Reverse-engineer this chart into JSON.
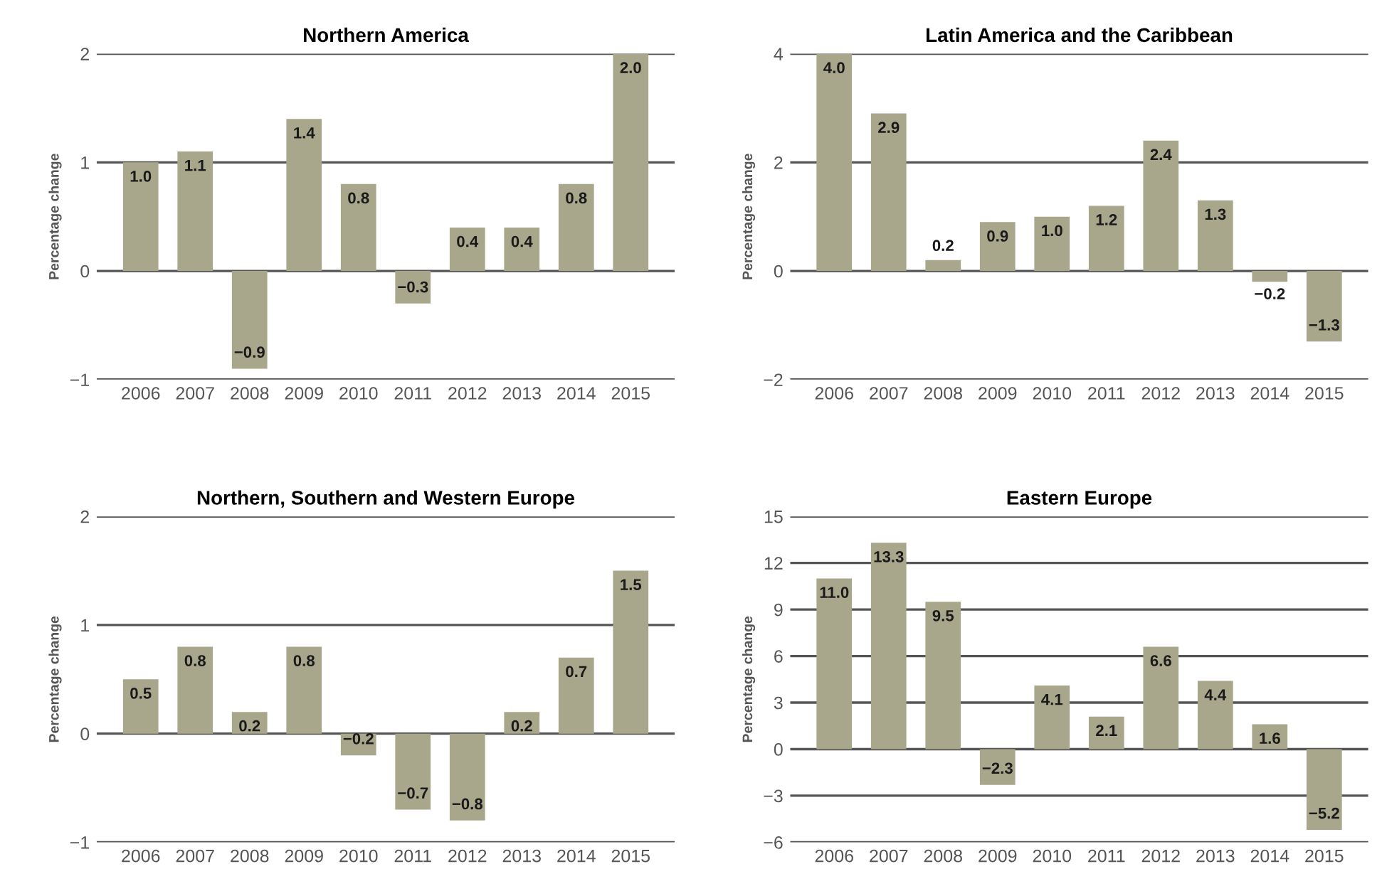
{
  "chart_data": [
    {
      "type": "bar",
      "title": "Northern America",
      "ylabel": "Percentage change",
      "categories": [
        "2006",
        "2007",
        "2008",
        "2009",
        "2010",
        "2011",
        "2012",
        "2013",
        "2014",
        "2015"
      ],
      "values": [
        1.0,
        1.1,
        -0.9,
        1.4,
        0.8,
        -0.3,
        0.4,
        0.4,
        0.8,
        2.0
      ],
      "value_labels": [
        "1.0",
        "1.1",
        "−0.9",
        "1.4",
        "0.8",
        "−0.3",
        "0.4",
        "0.4",
        "0.8",
        "2.0"
      ],
      "color": "#a8a78c",
      "ylim": [
        -1,
        2
      ],
      "yticks": [
        {
          "value": -1,
          "label": "−1"
        },
        0,
        1,
        2
      ],
      "grid": "y"
    },
    {
      "type": "bar",
      "title": "Latin America and the Caribbean",
      "ylabel": "Percentage change",
      "categories": [
        "2006",
        "2007",
        "2008",
        "2009",
        "2010",
        "2011",
        "2012",
        "2013",
        "2014",
        "2015"
      ],
      "values": [
        4.0,
        2.9,
        0.2,
        0.9,
        1.0,
        1.2,
        2.4,
        1.3,
        -0.2,
        -1.3
      ],
      "value_labels": [
        "4.0",
        "2.9",
        "0.2",
        "0.9",
        "1.0",
        "1.2",
        "2.4",
        "1.3",
        "−0.2",
        "−1.3"
      ],
      "color": "#a8a78c",
      "ylim": [
        -2,
        4
      ],
      "yticks": [
        {
          "value": -2,
          "label": "−2"
        },
        0,
        2,
        4
      ],
      "grid": "y"
    },
    {
      "type": "bar",
      "title": "Northern, Southern and Western Europe",
      "ylabel": "Percentage change",
      "categories": [
        "2006",
        "2007",
        "2008",
        "2009",
        "2010",
        "2011",
        "2012",
        "2013",
        "2014",
        "2015"
      ],
      "values": [
        0.5,
        0.8,
        0.2,
        0.8,
        -0.2,
        -0.7,
        -0.8,
        0.2,
        0.7,
        1.5
      ],
      "value_labels": [
        "0.5",
        "0.8",
        "0.2",
        "0.8",
        "−0.2",
        "−0.7",
        "−0.8",
        "0.2",
        "0.7",
        "1.5"
      ],
      "color": "#a8a78c",
      "ylim": [
        -1,
        2
      ],
      "yticks": [
        {
          "value": -1,
          "label": "−1"
        },
        0,
        1,
        2
      ],
      "grid": "y"
    },
    {
      "type": "bar",
      "title": "Eastern Europe",
      "ylabel": "Percentage change",
      "categories": [
        "2006",
        "2007",
        "2008",
        "2009",
        "2010",
        "2011",
        "2012",
        "2013",
        "2014",
        "2015"
      ],
      "values": [
        11.0,
        13.3,
        9.5,
        -2.3,
        4.1,
        2.1,
        6.6,
        4.4,
        1.6,
        -5.2
      ],
      "value_labels": [
        "11.0",
        "13.3",
        "9.5",
        "−2.3",
        "4.1",
        "2.1",
        "6.6",
        "4.4",
        "1.6",
        "−5.2"
      ],
      "color": "#a8a78c",
      "ylim": [
        -6,
        15
      ],
      "yticks": [
        {
          "value": -6,
          "label": "−6"
        },
        {
          "value": -3,
          "label": "−3"
        },
        0,
        3,
        6,
        9,
        12,
        15
      ],
      "grid": "y"
    }
  ]
}
